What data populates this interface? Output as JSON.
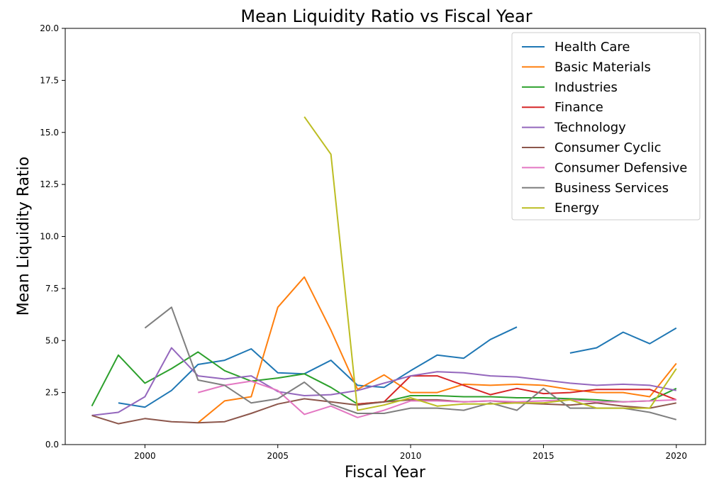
{
  "chart_data": {
    "type": "line",
    "title": "Mean Liquidity Ratio vs Fiscal Year",
    "xlabel": "Fiscal Year",
    "ylabel": "Mean Liquidity Ratio",
    "xlim": [
      1997.0,
      2021.1
    ],
    "ylim": [
      0,
      20
    ],
    "xticks": [
      2000,
      2005,
      2010,
      2015,
      2020
    ],
    "xtick_labels": [
      "2000",
      "2005",
      "2010",
      "2015",
      "2020"
    ],
    "yticks": [
      0,
      2.5,
      5,
      7.5,
      10,
      12.5,
      15,
      17.5,
      20
    ],
    "ytick_labels": [
      "0.0",
      "2.5",
      "5.0",
      "7.5",
      "10.0",
      "12.5",
      "15.0",
      "17.5",
      "20.0"
    ],
    "grid": false,
    "legend_position": "top-right",
    "series": [
      {
        "name": "Health Care",
        "color": "#1f77b4",
        "points": [
          [
            1999,
            2.0
          ],
          [
            2000,
            1.8
          ],
          [
            2001,
            2.6
          ],
          [
            2002,
            3.85
          ],
          [
            2003,
            4.05
          ],
          [
            2004,
            4.6
          ],
          [
            2005,
            3.45
          ],
          [
            2006,
            3.4
          ],
          [
            2007,
            4.05
          ],
          [
            2008,
            2.85
          ],
          [
            2009,
            2.75
          ],
          [
            2010,
            3.55
          ],
          [
            2011,
            4.3
          ],
          [
            2012,
            4.15
          ],
          [
            2013,
            5.05
          ],
          [
            2014,
            5.65
          ],
          [
            2016,
            4.4
          ],
          [
            2017,
            4.65
          ],
          [
            2018,
            5.4
          ],
          [
            2019,
            4.85
          ],
          [
            2020,
            5.6
          ]
        ]
      },
      {
        "name": "Basic Materials",
        "color": "#ff7f0e",
        "points": [
          [
            2002,
            1.05
          ],
          [
            2003,
            2.1
          ],
          [
            2004,
            2.3
          ],
          [
            2005,
            6.6
          ],
          [
            2006,
            8.05
          ],
          [
            2007,
            5.5
          ],
          [
            2008,
            2.65
          ],
          [
            2009,
            3.35
          ],
          [
            2010,
            2.5
          ],
          [
            2011,
            2.5
          ],
          [
            2012,
            2.9
          ],
          [
            2013,
            2.85
          ],
          [
            2014,
            2.9
          ],
          [
            2015,
            2.85
          ],
          [
            2016,
            2.65
          ],
          [
            2017,
            2.5
          ],
          [
            2018,
            2.5
          ],
          [
            2019,
            2.3
          ],
          [
            2020,
            3.9
          ]
        ]
      },
      {
        "name": "Industries",
        "color": "#2ca02c",
        "points": [
          [
            1998,
            1.85
          ],
          [
            1999,
            4.3
          ],
          [
            2000,
            2.95
          ],
          [
            2001,
            3.65
          ],
          [
            2002,
            4.45
          ],
          [
            2003,
            3.55
          ],
          [
            2004,
            3.05
          ],
          [
            2005,
            3.2
          ],
          [
            2006,
            3.4
          ],
          [
            2007,
            2.75
          ],
          [
            2008,
            1.95
          ],
          [
            2009,
            2.05
          ],
          [
            2010,
            2.35
          ],
          [
            2011,
            2.35
          ],
          [
            2012,
            2.3
          ],
          [
            2013,
            2.3
          ],
          [
            2014,
            2.25
          ],
          [
            2015,
            2.25
          ],
          [
            2016,
            2.2
          ],
          [
            2017,
            2.15
          ],
          [
            2018,
            2.05
          ],
          [
            2019,
            2.1
          ],
          [
            2020,
            2.7
          ]
        ]
      },
      {
        "name": "Finance",
        "color": "#d62728",
        "points": [
          [
            2008,
            1.95
          ],
          [
            2009,
            2.05
          ],
          [
            2010,
            3.3
          ],
          [
            2011,
            3.3
          ],
          [
            2012,
            2.85
          ],
          [
            2013,
            2.4
          ],
          [
            2014,
            2.7
          ],
          [
            2015,
            2.45
          ],
          [
            2016,
            2.5
          ],
          [
            2017,
            2.65
          ],
          [
            2018,
            2.65
          ],
          [
            2019,
            2.65
          ],
          [
            2020,
            2.15
          ]
        ]
      },
      {
        "name": "Technology",
        "color": "#9467bd",
        "points": [
          [
            1998,
            1.4
          ],
          [
            1999,
            1.55
          ],
          [
            2000,
            2.3
          ],
          [
            2001,
            4.65
          ],
          [
            2002,
            3.3
          ],
          [
            2003,
            3.15
          ],
          [
            2004,
            3.3
          ],
          [
            2005,
            2.55
          ],
          [
            2006,
            2.35
          ],
          [
            2007,
            2.4
          ],
          [
            2008,
            2.6
          ],
          [
            2009,
            2.95
          ],
          [
            2010,
            3.3
          ],
          [
            2011,
            3.5
          ],
          [
            2012,
            3.45
          ],
          [
            2013,
            3.3
          ],
          [
            2014,
            3.25
          ],
          [
            2015,
            3.1
          ],
          [
            2016,
            2.95
          ],
          [
            2017,
            2.85
          ],
          [
            2018,
            2.9
          ],
          [
            2019,
            2.85
          ],
          [
            2020,
            2.6
          ]
        ]
      },
      {
        "name": "Consumer Cyclic",
        "color": "#8c564b",
        "points": [
          [
            1998,
            1.4
          ],
          [
            1999,
            1.0
          ],
          [
            2000,
            1.25
          ],
          [
            2001,
            1.1
          ],
          [
            2002,
            1.05
          ],
          [
            2003,
            1.1
          ],
          [
            2004,
            1.5
          ],
          [
            2005,
            1.95
          ],
          [
            2006,
            2.2
          ],
          [
            2007,
            2.05
          ],
          [
            2008,
            1.9
          ],
          [
            2009,
            2.05
          ],
          [
            2010,
            2.15
          ],
          [
            2011,
            2.15
          ],
          [
            2012,
            2.05
          ],
          [
            2013,
            2.1
          ],
          [
            2014,
            2.0
          ],
          [
            2015,
            1.95
          ],
          [
            2016,
            1.9
          ],
          [
            2017,
            2.0
          ],
          [
            2018,
            1.85
          ],
          [
            2019,
            1.75
          ],
          [
            2020,
            2.0
          ]
        ]
      },
      {
        "name": "Consumer Defensive",
        "color": "#e377c2",
        "points": [
          [
            2002,
            2.5
          ],
          [
            2003,
            2.85
          ],
          [
            2004,
            3.05
          ],
          [
            2005,
            2.6
          ],
          [
            2006,
            1.45
          ],
          [
            2007,
            1.85
          ],
          [
            2008,
            1.3
          ],
          [
            2009,
            1.65
          ],
          [
            2010,
            2.1
          ],
          [
            2011,
            2.1
          ],
          [
            2012,
            2.05
          ],
          [
            2013,
            2.1
          ],
          [
            2014,
            2.05
          ],
          [
            2015,
            2.1
          ],
          [
            2016,
            2.15
          ],
          [
            2017,
            2.05
          ],
          [
            2018,
            2.05
          ],
          [
            2019,
            2.1
          ],
          [
            2020,
            2.15
          ]
        ]
      },
      {
        "name": "Business Services",
        "color": "#7f7f7f",
        "points": [
          [
            2000,
            5.6
          ],
          [
            2001,
            6.6
          ],
          [
            2002,
            3.1
          ],
          [
            2003,
            2.85
          ],
          [
            2004,
            2.0
          ],
          [
            2005,
            2.2
          ],
          [
            2006,
            3.0
          ],
          [
            2007,
            1.95
          ],
          [
            2008,
            1.5
          ],
          [
            2009,
            1.5
          ],
          [
            2010,
            1.75
          ],
          [
            2011,
            1.75
          ],
          [
            2012,
            1.65
          ],
          [
            2013,
            2.0
          ],
          [
            2014,
            1.65
          ],
          [
            2015,
            2.7
          ],
          [
            2016,
            1.75
          ],
          [
            2017,
            1.75
          ],
          [
            2018,
            1.75
          ],
          [
            2019,
            1.55
          ],
          [
            2020,
            1.2
          ]
        ]
      },
      {
        "name": "Energy",
        "color": "#bcbd22",
        "points": [
          [
            2006,
            15.75
          ],
          [
            2007,
            13.95
          ],
          [
            2008,
            1.65
          ],
          [
            2009,
            1.9
          ],
          [
            2010,
            2.25
          ],
          [
            2011,
            1.85
          ],
          [
            2012,
            1.95
          ],
          [
            2013,
            1.95
          ],
          [
            2014,
            2.0
          ],
          [
            2015,
            2.0
          ],
          [
            2016,
            2.15
          ],
          [
            2017,
            1.75
          ],
          [
            2018,
            1.75
          ],
          [
            2019,
            1.75
          ],
          [
            2020,
            3.65
          ]
        ]
      }
    ]
  }
}
